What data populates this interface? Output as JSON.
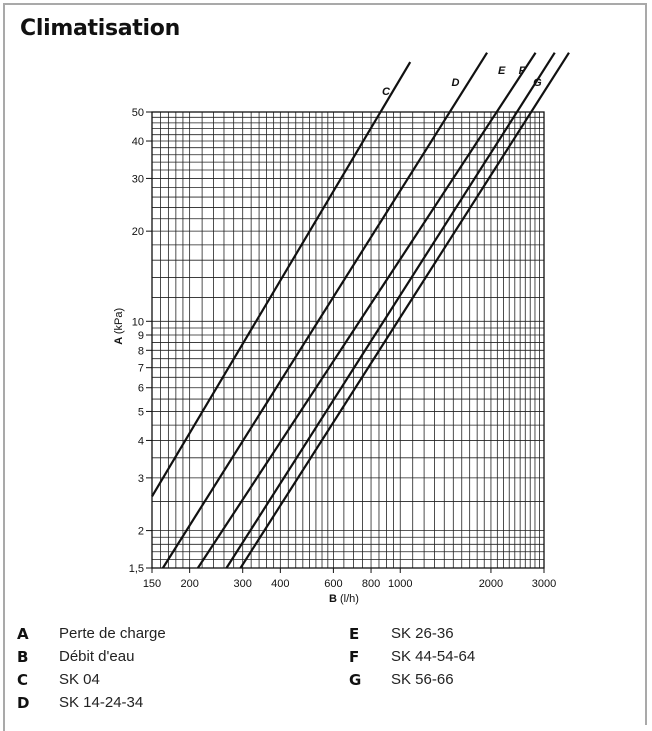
{
  "page": {
    "title": "Climatisation"
  },
  "chart_data": {
    "type": "line",
    "x_scale": "log",
    "y_scale": "log",
    "xlim": [
      150,
      3000
    ],
    "ylim": [
      1.5,
      50
    ],
    "xlabel_key": "B",
    "xlabel_unit": "(l/h)",
    "ylabel_key": "A",
    "ylabel_unit": "(kPa)",
    "x_ticks": [
      150,
      200,
      300,
      400,
      600,
      800,
      1000,
      2000,
      3000
    ],
    "x_tick_labels": [
      "150",
      "200",
      "300",
      "400",
      "600",
      "800",
      "1000",
      "2000",
      "3000"
    ],
    "y_ticks": [
      1.5,
      2,
      3,
      4,
      5,
      6,
      7,
      8,
      9,
      10,
      20,
      30,
      40,
      50
    ],
    "y_tick_labels": [
      "1,5",
      "2",
      "3",
      "4",
      "5",
      "6",
      "7",
      "8",
      "9",
      "10",
      "20",
      "30",
      "40",
      "50"
    ],
    "grid": true,
    "series": [
      {
        "name": "C",
        "points": [
          [
            150,
            2.6
          ],
          [
            860,
            50
          ]
        ],
        "label_at": [
          870,
          57
        ]
      },
      {
        "name": "D",
        "points": [
          [
            163,
            1.5
          ],
          [
            1460,
            50
          ]
        ],
        "label_at": [
          1480,
          61
        ]
      },
      {
        "name": "E",
        "points": [
          [
            213,
            1.5
          ],
          [
            2090,
            50
          ]
        ],
        "label_at": [
          2110,
          67
        ]
      },
      {
        "name": "F",
        "points": [
          [
            265,
            1.5
          ],
          [
            2440,
            50
          ]
        ],
        "label_at": [
          2470,
          67
        ]
      },
      {
        "name": "G",
        "points": [
          [
            295,
            1.5
          ],
          [
            2720,
            50
          ]
        ],
        "label_at": [
          2760,
          61
        ]
      }
    ]
  },
  "legend": {
    "left": [
      {
        "key": "A",
        "label": "Perte de charge"
      },
      {
        "key": "B",
        "label": "Débit d'eau"
      },
      {
        "key": "C",
        "label": "SK 04"
      },
      {
        "key": "D",
        "label": "SK 14-24-34"
      }
    ],
    "right": [
      {
        "key": "E",
        "label": "SK 26-36"
      },
      {
        "key": "F",
        "label": "SK 44-54-64"
      },
      {
        "key": "G",
        "label": "SK 56-66"
      }
    ]
  }
}
